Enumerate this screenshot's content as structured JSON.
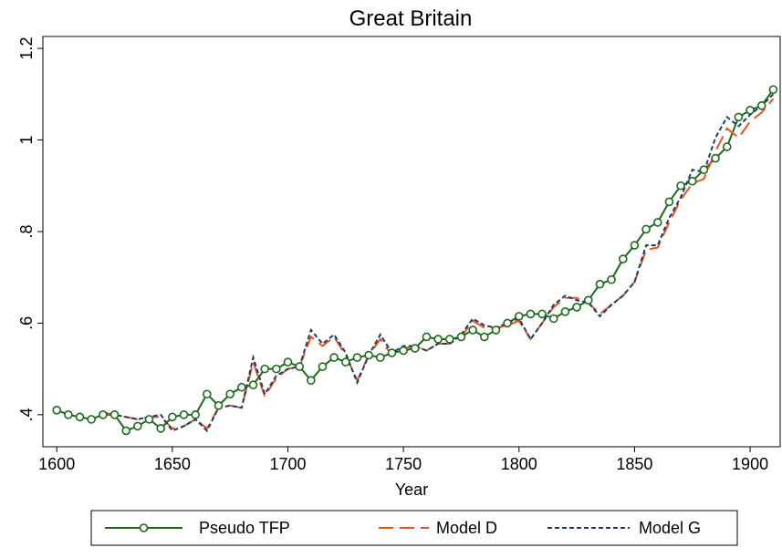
{
  "chart_data": {
    "type": "line",
    "title": "Great Britain",
    "x_label": "Year",
    "x": [
      1600,
      1605,
      1610,
      1615,
      1620,
      1625,
      1630,
      1635,
      1640,
      1645,
      1650,
      1655,
      1660,
      1665,
      1670,
      1675,
      1680,
      1685,
      1690,
      1695,
      1700,
      1705,
      1710,
      1715,
      1720,
      1725,
      1730,
      1735,
      1740,
      1745,
      1750,
      1755,
      1760,
      1765,
      1770,
      1775,
      1780,
      1785,
      1790,
      1795,
      1800,
      1805,
      1810,
      1815,
      1820,
      1825,
      1830,
      1835,
      1840,
      1845,
      1850,
      1855,
      1860,
      1865,
      1870,
      1875,
      1880,
      1885,
      1890,
      1895,
      1900,
      1905,
      1910
    ],
    "series": [
      {
        "name": "Pseudo TFP",
        "color": "#1a6b1a",
        "line_style": "solid",
        "marker": "circle",
        "values": [
          0.41,
          0.4,
          0.395,
          0.39,
          0.4,
          0.4,
          0.365,
          0.375,
          0.39,
          0.37,
          0.395,
          0.4,
          0.4,
          0.445,
          0.42,
          0.445,
          0.46,
          0.465,
          0.5,
          0.5,
          0.515,
          0.505,
          0.475,
          0.505,
          0.525,
          0.515,
          0.525,
          0.53,
          0.525,
          0.535,
          0.54,
          0.545,
          0.57,
          0.565,
          0.565,
          0.57,
          0.585,
          0.57,
          0.585,
          0.6,
          0.615,
          0.62,
          0.62,
          0.61,
          0.625,
          0.635,
          0.65,
          0.685,
          0.695,
          0.74,
          0.77,
          0.805,
          0.82,
          0.865,
          0.9,
          0.91,
          0.935,
          0.96,
          0.985,
          1.05,
          1.065,
          1.075,
          1.11
        ]
      },
      {
        "name": "Model D",
        "color": "#e8541c",
        "line_style": "long-dash",
        "marker": "none",
        "values": [
          null,
          null,
          null,
          null,
          0.405,
          0.4,
          0.395,
          0.39,
          0.395,
          0.395,
          0.37,
          0.375,
          0.39,
          0.37,
          0.415,
          0.42,
          0.415,
          0.515,
          0.44,
          0.48,
          0.5,
          0.505,
          0.57,
          0.55,
          0.57,
          0.53,
          0.475,
          0.53,
          0.565,
          0.53,
          0.545,
          0.55,
          0.54,
          0.555,
          0.555,
          0.57,
          0.605,
          0.59,
          0.59,
          0.595,
          0.605,
          0.565,
          0.6,
          0.635,
          0.655,
          0.655,
          0.645,
          0.62,
          0.64,
          0.66,
          0.69,
          0.76,
          0.765,
          0.82,
          0.87,
          0.905,
          0.915,
          0.975,
          1.025,
          1.005,
          1.04,
          1.06,
          1.09
        ]
      },
      {
        "name": "Model G",
        "color": "#1f3d6b",
        "line_style": "short-dash",
        "marker": "none",
        "values": [
          null,
          null,
          null,
          null,
          0.405,
          0.4,
          0.395,
          0.39,
          0.395,
          0.4,
          0.365,
          0.375,
          0.39,
          0.365,
          0.415,
          0.42,
          0.415,
          0.525,
          0.445,
          0.485,
          0.5,
          0.505,
          0.585,
          0.555,
          0.575,
          0.535,
          0.47,
          0.53,
          0.575,
          0.535,
          0.55,
          0.55,
          0.54,
          0.555,
          0.555,
          0.575,
          0.61,
          0.595,
          0.59,
          0.6,
          0.61,
          0.565,
          0.6,
          0.64,
          0.66,
          0.65,
          0.645,
          0.615,
          0.64,
          0.66,
          0.69,
          0.77,
          0.77,
          0.83,
          0.875,
          0.935,
          0.93,
          1.005,
          1.05,
          1.03,
          1.055,
          1.075,
          1.1
        ]
      }
    ],
    "xlim": [
      1594,
      1913
    ],
    "xticks": [
      1600,
      1650,
      1700,
      1750,
      1800,
      1850,
      1900
    ],
    "ylim": [
      0.33,
      1.226
    ],
    "yticks": [
      {
        "value": 0.4,
        "label": ".4"
      },
      {
        "value": 0.6,
        "label": ".6"
      },
      {
        "value": 0.8,
        "label": ".8"
      },
      {
        "value": 1,
        "label": "1"
      },
      {
        "value": 1.2,
        "label": "1.2"
      }
    ],
    "legend": "bottom"
  }
}
